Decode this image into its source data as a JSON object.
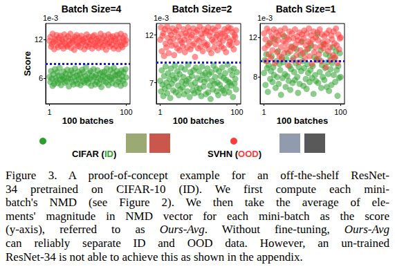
{
  "chart_data": [
    {
      "type": "scatter",
      "title": "Batch Size=4",
      "xlabel": "100 batches",
      "ylabel": "Score",
      "y_offset_text": "1e-3",
      "xlim": [
        -4,
        105
      ],
      "xticks": [
        1,
        100
      ],
      "ylim": [
        2,
        14.5
      ],
      "yticks": [
        6,
        12
      ],
      "grid": false,
      "x": [
        1,
        2,
        3,
        4,
        5,
        6,
        7,
        8,
        9,
        10,
        11,
        12,
        13,
        14,
        15,
        16,
        17,
        18,
        19,
        20,
        21,
        22,
        23,
        24,
        25,
        26,
        27,
        28,
        29,
        30,
        31,
        32,
        33,
        34,
        35,
        36,
        37,
        38,
        39,
        40,
        41,
        42,
        43,
        44,
        45,
        46,
        47,
        48,
        49,
        50,
        51,
        52,
        53,
        54,
        55,
        56,
        57,
        58,
        59,
        60,
        61,
        62,
        63,
        64,
        65,
        66,
        67,
        68,
        69,
        70,
        71,
        72,
        73,
        74,
        75,
        76,
        77,
        78,
        79,
        80,
        81,
        82,
        83,
        84,
        85,
        86,
        87,
        88,
        89,
        90,
        91,
        92,
        93,
        94,
        95,
        96,
        97,
        98,
        99,
        100
      ],
      "threshold": {
        "value": 8.2,
        "color": "#1a1acc",
        "line_style": "dotted"
      },
      "series": [
        {
          "name": "CIFAR (ID)",
          "color": "#2ca02c",
          "marker": "circle",
          "values": [
            6.2,
            5.4,
            7.1,
            5.9,
            4.8,
            6.6,
            5.1,
            7.4,
            6.0,
            5.6,
            6.9,
            5.2,
            6.4,
            7.6,
            5.7,
            4.9,
            6.3,
            5.8,
            7.0,
            6.1,
            5.3,
            6.7,
            5.5,
            7.3,
            6.0,
            4.7,
            6.5,
            5.9,
            7.2,
            5.4,
            6.8,
            5.0,
            6.2,
            7.5,
            5.6,
            6.4,
            5.1,
            7.0,
            5.8,
            6.6,
            4.9,
            6.1,
            7.3,
            5.5,
            6.9,
            5.3,
            6.3,
            7.7,
            5.7,
            6.0,
            5.2,
            6.8,
            5.9,
            7.1,
            4.8,
            6.4,
            5.6,
            7.4,
            6.2,
            5.0,
            6.5,
            5.4,
            7.2,
            6.0,
            5.1,
            6.7,
            5.8,
            4.6,
            6.9,
            6.3,
            5.5,
            7.0,
            6.1,
            5.3,
            7.5,
            6.6,
            4.9,
            6.2,
            5.7,
            7.3,
            6.0,
            5.2,
            6.8,
            7.6,
            5.9,
            6.4,
            5.0,
            7.1,
            6.5,
            5.4,
            6.7,
            5.8,
            4.8,
            7.2,
            6.3,
            5.6,
            6.9,
            5.1,
            7.4,
            6.1
          ]
        },
        {
          "name": "SVHN (OOD)",
          "color": "#ff3b3b",
          "marker": "circle",
          "values": [
            11.8,
            12.4,
            10.9,
            11.3,
            12.9,
            11.6,
            10.5,
            12.1,
            11.9,
            12.7,
            11.2,
            10.8,
            12.3,
            11.5,
            12.6,
            11.0,
            12.0,
            11.7,
            10.6,
            12.8,
            11.4,
            12.2,
            11.1,
            10.9,
            12.5,
            11.8,
            11.3,
            12.9,
            10.7,
            11.6,
            12.1,
            11.9,
            10.4,
            12.4,
            11.2,
            12.7,
            11.5,
            11.0,
            12.3,
            11.8,
            10.8,
            12.6,
            11.4,
            12.0,
            11.7,
            10.5,
            12.2,
            11.1,
            12.8,
            11.6,
            10.9,
            12.4,
            11.3,
            12.0,
            11.9,
            10.6,
            12.5,
            11.2,
            12.7,
            11.5,
            11.0,
            12.1,
            11.8,
            10.7,
            12.3,
            11.4,
            12.9,
            11.6,
            10.8,
            12.2,
            11.1,
            12.6,
            11.7,
            10.4,
            12.0,
            11.3,
            12.8,
            11.5,
            10.9,
            12.4,
            11.9,
            11.2,
            12.5,
            10.6,
            11.8,
            12.1,
            11.0,
            12.7,
            11.4,
            10.5,
            12.3,
            11.6,
            12.9,
            11.1,
            10.8,
            12.2,
            11.7,
            12.6,
            11.3,
            11.9
          ]
        }
      ]
    },
    {
      "type": "scatter",
      "title": "Batch Size=2",
      "xlabel": "100 batches",
      "y_offset_text": "1e-3",
      "xlim": [
        -4,
        105
      ],
      "xticks": [
        1,
        100
      ],
      "ylim": [
        4.8,
        13.2
      ],
      "yticks": [
        7,
        12
      ],
      "grid": false,
      "x": [
        1,
        2,
        3,
        4,
        5,
        6,
        7,
        8,
        9,
        10,
        11,
        12,
        13,
        14,
        15,
        16,
        17,
        18,
        19,
        20,
        21,
        22,
        23,
        24,
        25,
        26,
        27,
        28,
        29,
        30,
        31,
        32,
        33,
        34,
        35,
        36,
        37,
        38,
        39,
        40,
        41,
        42,
        43,
        44,
        45,
        46,
        47,
        48,
        49,
        50,
        51,
        52,
        53,
        54,
        55,
        56,
        57,
        58,
        59,
        60,
        61,
        62,
        63,
        64,
        65,
        66,
        67,
        68,
        69,
        70,
        71,
        72,
        73,
        74,
        75,
        76,
        77,
        78,
        79,
        80,
        81,
        82,
        83,
        84,
        85,
        86,
        87,
        88,
        89,
        90,
        91,
        92,
        93,
        94,
        95,
        96,
        97,
        98,
        99,
        100
      ],
      "threshold": {
        "value": 9.1,
        "color": "#1a1acc",
        "line_style": "dotted"
      },
      "series": [
        {
          "name": "CIFAR (ID)",
          "color": "#2ca02c",
          "marker": "circle",
          "values": [
            7.2,
            6.1,
            8.3,
            6.8,
            5.6,
            7.7,
            6.4,
            8.7,
            7.0,
            5.9,
            8.0,
            6.6,
            7.4,
            5.4,
            8.5,
            6.9,
            7.8,
            6.2,
            7.3,
            8.8,
            6.0,
            7.5,
            8.2,
            6.7,
            5.7,
            7.9,
            6.3,
            8.6,
            7.1,
            6.5,
            7.6,
            5.8,
            8.4,
            6.9,
            7.2,
            6.1,
            8.9,
            7.4,
            5.5,
            8.1,
            6.8,
            7.7,
            6.2,
            8.3,
            5.9,
            7.0,
            8.6,
            6.5,
            7.5,
            6.0,
            8.2,
            6.4,
            7.3,
            5.6,
            8.7,
            7.8,
            6.6,
            7.1,
            8.0,
            5.8,
            7.4,
            8.5,
            6.0,
            7.9,
            6.7,
            5.3,
            8.1,
            7.2,
            6.3,
            8.8,
            6.9,
            7.6,
            8.4,
            6.1,
            7.0,
            5.7,
            8.2,
            6.8,
            7.7,
            6.4,
            8.6,
            6.2,
            7.5,
            5.9,
            8.0,
            7.3,
            6.5,
            8.9,
            7.1,
            6.0,
            7.0,
            8.3,
            6.7,
            7.8,
            5.5,
            8.5,
            6.9,
            7.4,
            6.3,
            8.1
          ]
        },
        {
          "name": "SVHN (OOD)",
          "color": "#ff3b3b",
          "marker": "circle",
          "values": [
            11.5,
            12.8,
            10.3,
            11.9,
            12.2,
            9.8,
            12.6,
            11.1,
            10.7,
            12.9,
            11.7,
            10.1,
            12.4,
            11.3,
            12.0,
            10.9,
            12.7,
            11.6,
            9.9,
            12.3,
            11.0,
            12.5,
            10.6,
            11.8,
            12.9,
            10.4,
            11.4,
            12.1,
            11.2,
            10.8,
            12.6,
            11.5,
            10.2,
            12.2,
            11.9,
            10.7,
            12.8,
            11.3,
            12.4,
            10.5,
            11.8,
            12.0,
            10.9,
            12.7,
            11.1,
            9.7,
            12.3,
            11.6,
            12.5,
            10.6,
            11.4,
            12.9,
            10.8,
            12.1,
            11.7,
            10.3,
            12.6,
            11.2,
            12.2,
            10.9,
            12.4,
            11.0,
            12.8,
            10.5,
            11.9,
            12.3,
            10.1,
            11.5,
            12.7,
            11.3,
            10.7,
            12.5,
            11.8,
            12.0,
            10.4,
            12.9,
            11.1,
            11.6,
            12.2,
            10.8,
            12.1,
            11.4,
            10.6,
            12.6,
            11.9,
            10.2,
            12.4,
            11.7,
            12.8,
            11.0,
            11.3,
            12.7,
            10.9,
            12.3,
            11.5,
            10.5,
            12.0,
            11.8,
            12.5,
            11.2
          ]
        }
      ]
    },
    {
      "type": "scatter",
      "title": "Batch Size=1",
      "xlabel": "100 batches",
      "y_offset_text": "1e-3",
      "xlim": [
        -4,
        105
      ],
      "xticks": [
        1,
        100
      ],
      "ylim": [
        5.3,
        13.4
      ],
      "yticks": [
        8,
        12
      ],
      "grid": false,
      "x": [
        1,
        2,
        3,
        4,
        5,
        6,
        7,
        8,
        9,
        10,
        11,
        12,
        13,
        14,
        15,
        16,
        17,
        18,
        19,
        20,
        21,
        22,
        23,
        24,
        25,
        26,
        27,
        28,
        29,
        30,
        31,
        32,
        33,
        34,
        35,
        36,
        37,
        38,
        39,
        40,
        41,
        42,
        43,
        44,
        45,
        46,
        47,
        48,
        49,
        50,
        51,
        52,
        53,
        54,
        55,
        56,
        57,
        58,
        59,
        60,
        61,
        62,
        63,
        64,
        65,
        66,
        67,
        68,
        69,
        70,
        71,
        72,
        73,
        74,
        75,
        76,
        77,
        78,
        79,
        80,
        81,
        82,
        83,
        84,
        85,
        86,
        87,
        88,
        89,
        90,
        91,
        92,
        93,
        94,
        95,
        96,
        97,
        98,
        99,
        100
      ],
      "threshold": {
        "value": 9.6,
        "color": "#1a1acc",
        "line_style": "dotted"
      },
      "series": [
        {
          "name": "CIFAR (ID)",
          "color": "#2ca02c",
          "marker": "circle",
          "values": [
            8.4,
            9.7,
            7.2,
            10.3,
            8.9,
            6.5,
            9.2,
            11.4,
            7.8,
            8.6,
            10.1,
            7.5,
            9.0,
            8.2,
            11.8,
            6.9,
            9.6,
            8.0,
            10.6,
            7.3,
            9.3,
            8.7,
            6.2,
            10.0,
            7.9,
            9.5,
            12.1,
            8.3,
            7.0,
            9.8,
            8.1,
            10.4,
            7.6,
            9.1,
            6.7,
            8.8,
            11.0,
            7.4,
            9.9,
            8.5,
            7.7,
            9.4,
            10.8,
            8.0,
            6.4,
            9.0,
            7.3,
            10.2,
            8.6,
            11.6,
            9.6,
            7.1,
            8.9,
            10.5,
            7.8,
            6.8,
            9.3,
            8.4,
            10.9,
            7.5,
            8.7,
            11.2,
            7.9,
            9.1,
            6.3,
            10.0,
            8.2,
            7.6,
            9.7,
            12.3,
            7.4,
            9.8,
            8.5,
            10.7,
            6.9,
            9.2,
            8.0,
            11.3,
            7.7,
            8.9,
            10.3,
            7.0,
            9.5,
            8.3,
            6.6,
            10.1,
            8.8,
            7.2,
            9.4,
            11.0,
            8.2,
            9.9,
            7.5,
            10.6,
            8.7,
            6.1,
            9.1,
            7.9,
            10.4,
            8.0
          ]
        },
        {
          "name": "SVHN (OOD)",
          "color": "#ff3b3b",
          "marker": "circle",
          "values": [
            12.4,
            10.9,
            11.8,
            9.6,
            12.9,
            11.2,
            10.3,
            12.6,
            11.5,
            9.9,
            12.1,
            10.7,
            11.9,
            12.8,
            9.4,
            11.3,
            12.5,
            10.5,
            11.7,
            12.2,
            10.1,
            12.7,
            11.0,
            9.8,
            12.3,
            11.6,
            10.4,
            12.9,
            11.4,
            10.8,
            12.0,
            9.2,
            11.8,
            12.6,
            10.6,
            11.1,
            12.4,
            9.7,
            11.9,
            10.9,
            12.8,
            11.3,
            10.2,
            12.1,
            11.7,
            9.5,
            12.5,
            10.7,
            11.5,
            12.3,
            10.4,
            11.9,
            12.7,
            9.9,
            11.2,
            12.4,
            10.8,
            11.6,
            12.9,
            10.1,
            11.4,
            12.2,
            9.3,
            11.8,
            12.6,
            10.5,
            11.0,
            12.0,
            9.8,
            12.5,
            11.7,
            10.3,
            12.8,
            11.1,
            9.6,
            12.3,
            11.5,
            10.9,
            12.1,
            11.3,
            9.0,
            12.4,
            11.6,
            10.6,
            12.7,
            11.0,
            9.7,
            12.2,
            11.8,
            10.2,
            12.6,
            11.4,
            10.0,
            12.9,
            11.2,
            9.4,
            12.3,
            10.8,
            11.9,
            12.0
          ]
        }
      ]
    }
  ],
  "caption": {
    "lines": [
      "Figure 3. A proof-of-concept example for an off-the-shelf ResNet-",
      "34 pretrained on CIFAR-10 (ID). We first compute each mini-",
      "batch's NMD (see Figure 2). We then take the average of ele-",
      "ments' magnitude in NMD vector for each mini-batch as the score",
      "(y-axis), referred to as Ours-Avg. Without fine-tuning, Ours-Avg",
      "can reliably separate ID and OOD data. However, an un-trained",
      "ResNet-34 is not able to achieve this as shown in the appendix."
    ],
    "italic": [
      "Ours-Avg"
    ]
  }
}
